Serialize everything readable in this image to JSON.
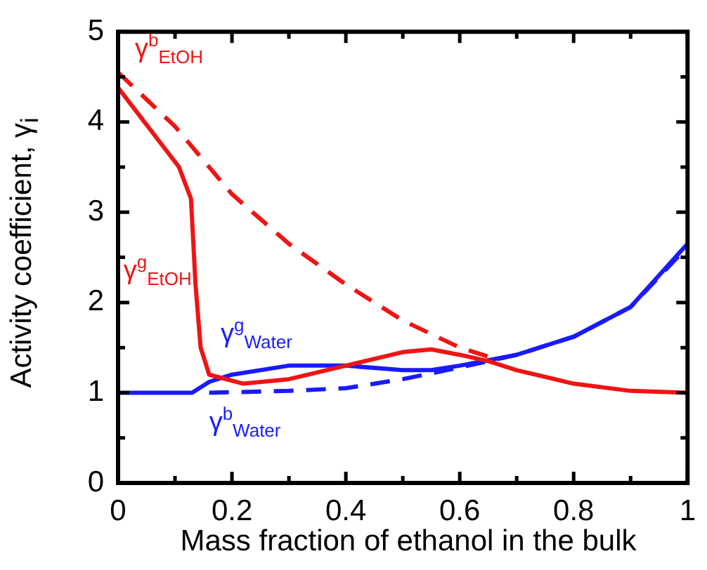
{
  "chart_data": {
    "type": "line",
    "xlabel": "Mass fraction of ethanol in the bulk",
    "ylabel": "Activity coefficient, γ$_{i}$",
    "xlim": [
      0,
      1
    ],
    "ylim": [
      0,
      5
    ],
    "xticks": [
      0,
      {
        "value": 0.1,
        "label": null
      },
      0.2,
      {
        "value": 0.3,
        "label": null
      },
      0.4,
      {
        "value": 0.5,
        "label": null
      },
      0.6,
      {
        "value": 0.7,
        "label": null
      },
      0.8,
      {
        "value": 0.9,
        "label": null
      },
      1
    ],
    "yticks": [
      0,
      {
        "value": 0.5,
        "label": null
      },
      1,
      {
        "value": 1.5,
        "label": null
      },
      2,
      {
        "value": 2.5,
        "label": null
      },
      3,
      {
        "value": 3.5,
        "label": null
      },
      4,
      {
        "value": 4.5,
        "label": null
      },
      5
    ],
    "grid": false,
    "legend": false,
    "marker": "none",
    "series": [
      {
        "name": "γ$^{b}$$_{EtOH}$",
        "color": "#f01414",
        "line_style": "dashed",
        "x": [
          0,
          0.1,
          0.2,
          0.3,
          0.4,
          0.5,
          0.6,
          0.66
        ],
        "values": [
          4.55,
          3.95,
          3.2,
          2.65,
          2.2,
          1.8,
          1.5,
          1.38
        ]
      },
      {
        "name": "γ$^{g}$$_{EtOH}$",
        "color": "#f01414",
        "line_style": "solid",
        "x": [
          0,
          0.107,
          0.128,
          0.136,
          0.145,
          0.16,
          0.22,
          0.3,
          0.4,
          0.5,
          0.55,
          0.6,
          0.65,
          0.7,
          0.8,
          0.9,
          1
        ],
        "values": [
          4.38,
          3.5,
          3.15,
          2.2,
          1.5,
          1.2,
          1.1,
          1.15,
          1.3,
          1.45,
          1.48,
          1.42,
          1.35,
          1.25,
          1.1,
          1.02,
          1
        ]
      },
      {
        "name": "γ$^{g}$$_{Water}$",
        "color": "#1a1aff",
        "line_style": "solid",
        "x": [
          0,
          0.13,
          0.16,
          0.2,
          0.3,
          0.4,
          0.5,
          0.55,
          0.6,
          0.7,
          0.8,
          0.9,
          1
        ],
        "values": [
          1,
          1,
          1.12,
          1.2,
          1.3,
          1.3,
          1.25,
          1.25,
          1.3,
          1.42,
          1.62,
          1.95,
          2.65
        ]
      },
      {
        "name": "γ$^{b}$$_{Water}$",
        "color": "#1a1aff",
        "line_style": "dashed",
        "x": [
          0.16,
          0.3,
          0.4,
          0.5,
          0.6,
          0.7,
          0.8,
          0.9,
          1
        ],
        "values": [
          1,
          1.02,
          1.05,
          1.15,
          1.28,
          1.42,
          1.62,
          1.95,
          2.62
        ]
      }
    ]
  }
}
